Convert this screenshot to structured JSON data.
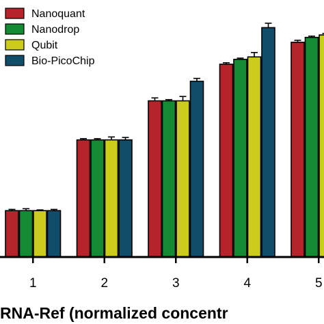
{
  "chart_data": {
    "type": "bar",
    "xlabel": "RNA-Ref (normalized concentr",
    "ylabel": "",
    "categories": [
      "1",
      "2",
      "3",
      "4",
      "5"
    ],
    "ylim": [
      0,
      100
    ],
    "grid": false,
    "legend_position": "top-left",
    "series": [
      {
        "name": "Nanoquant",
        "color": "#b5232b",
        "values": [
          19,
          48,
          64,
          79,
          88
        ],
        "errors": [
          0.5,
          0.5,
          1.2,
          0.6,
          0.8
        ]
      },
      {
        "name": "Nanodrop",
        "color": "#138a33",
        "values": [
          19,
          48,
          64,
          81,
          90
        ],
        "errors": [
          0.8,
          0.5,
          0.5,
          0.5,
          0.5
        ]
      },
      {
        "name": "Qubit",
        "color": "#cccc1c",
        "values": [
          19,
          48,
          64,
          82,
          91
        ],
        "errors": [
          0.3,
          1.2,
          1.8,
          1.8,
          0.6
        ]
      },
      {
        "name": "Bio-PicoChip",
        "color": "#0f4d6b",
        "values": [
          19,
          48,
          72,
          94,
          95
        ],
        "errors": [
          0.5,
          1.0,
          1.2,
          1.8,
          1.0
        ]
      }
    ]
  }
}
